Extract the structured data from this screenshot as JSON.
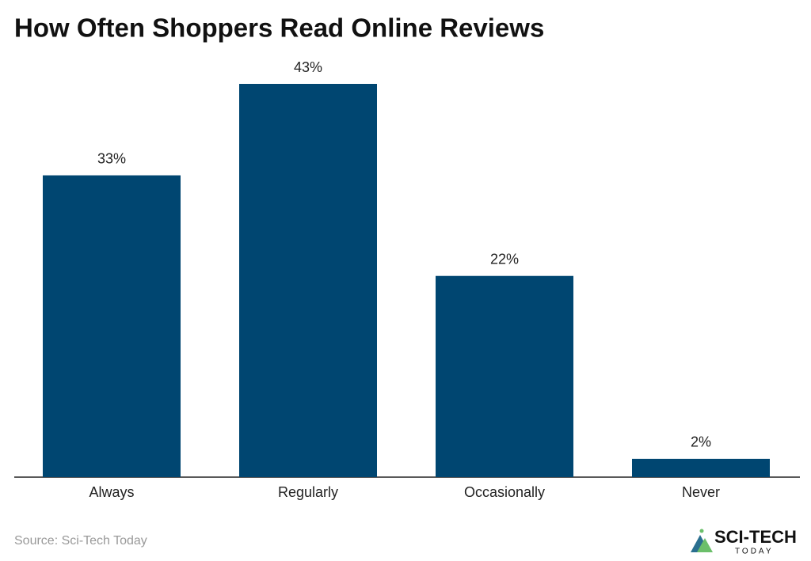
{
  "chart_data": {
    "type": "bar",
    "title": "How Often Shoppers Read Online Reviews",
    "categories": [
      "Always",
      "Regularly",
      "Occasionally",
      "Never"
    ],
    "values": [
      33,
      43,
      22,
      2
    ],
    "value_labels": [
      "33%",
      "43%",
      "22%",
      "2%"
    ],
    "color": "#004671",
    "source": "Source: Sci-Tech Today",
    "logo": {
      "name": "SCI-TECH",
      "tagline": "TODAY"
    }
  }
}
